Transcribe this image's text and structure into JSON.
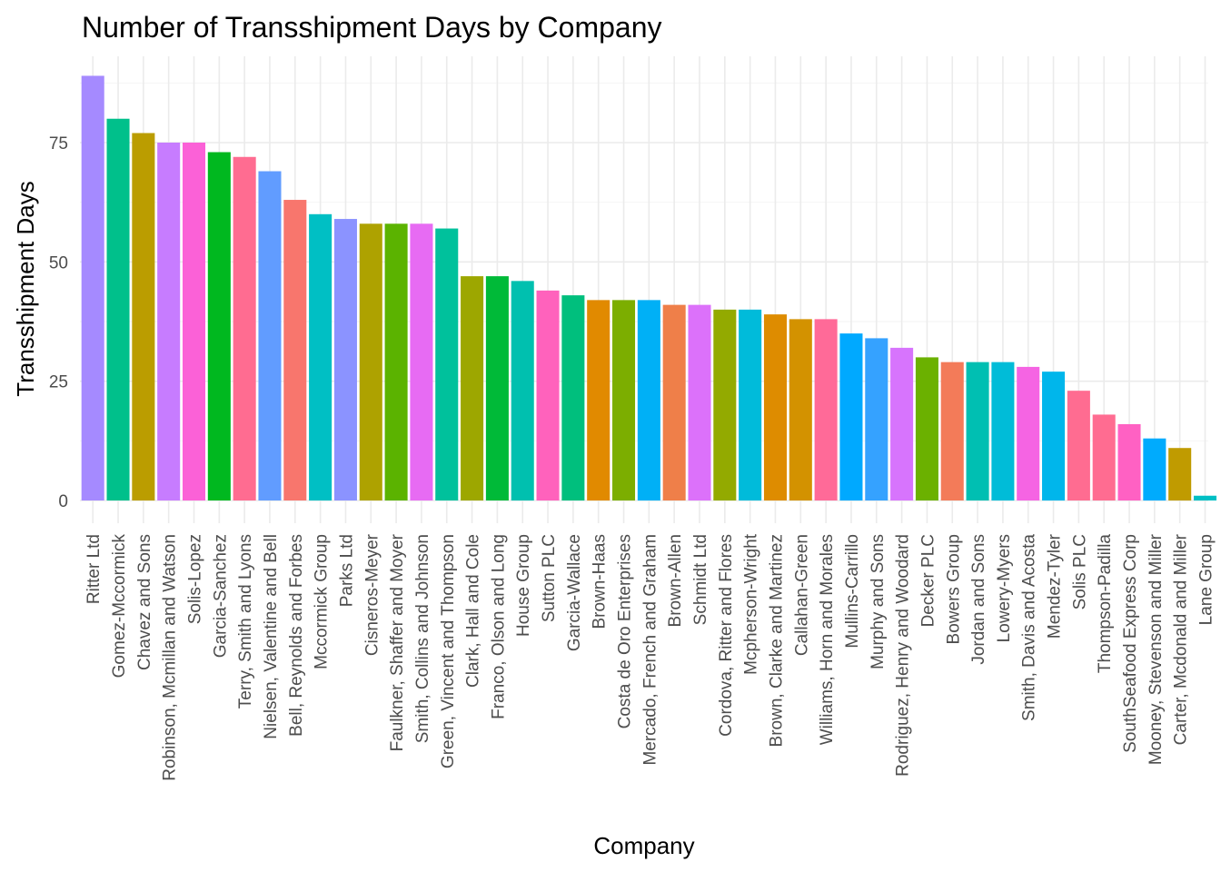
{
  "chart_data": {
    "type": "bar",
    "title": "Number of Transshipment Days by Company",
    "xlabel": "Company",
    "ylabel": "Transshipment Days",
    "ylim": [
      0,
      90
    ],
    "yticks": [
      0,
      25,
      50,
      75
    ],
    "grid": true,
    "legend": "none",
    "categories": [
      "Ritter Ltd",
      "Gomez-Mccormick",
      "Chavez and Sons",
      "Robinson, Mcmillan and Watson",
      "Solis-Lopez",
      "Garcia-Sanchez",
      "Terry, Smith and Lyons",
      "Nielsen, Valentine and Bell",
      "Bell, Reynolds and Forbes",
      "Mccormick Group",
      "Parks Ltd",
      "Cisneros-Meyer",
      "Faulkner, Shaffer and Moyer",
      "Smith, Collins and Johnson",
      "Green, Vincent and Thompson",
      "Clark, Hall and Cole",
      "Franco, Olson and Long",
      "House Group",
      "Sutton PLC",
      "Garcia-Wallace",
      "Brown-Haas",
      "Costa de Oro Enterprises",
      "Mercado, French and Graham",
      "Brown-Allen",
      "Schmidt Ltd",
      "Cordova, Ritter and Flores",
      "Mcpherson-Wright",
      "Brown, Clarke and Martinez",
      "Callahan-Green",
      "Williams, Horn and Morales",
      "Mullins-Carrillo",
      "Murphy and Sons",
      "Rodriguez, Henry and Woodard",
      "Decker PLC",
      "Bowers Group",
      "Jordan and Sons",
      "Lowery-Myers",
      "Smith, Davis and Acosta",
      "Mendez-Tyler",
      "Solis PLC",
      "Thompson-Padilla",
      "SouthSeafood Express Corp",
      "Mooney, Stevenson and Miller",
      "Carter, Mcdonald and Miller",
      "Lane Group"
    ],
    "values": [
      89,
      80,
      77,
      75,
      75,
      73,
      72,
      69,
      63,
      60,
      59,
      58,
      58,
      58,
      57,
      47,
      47,
      46,
      44,
      43,
      42,
      42,
      42,
      41,
      41,
      40,
      40,
      39,
      38,
      38,
      35,
      34,
      32,
      30,
      29,
      29,
      29,
      28,
      27,
      23,
      18,
      16,
      13,
      11,
      1
    ],
    "colors": [
      "#A58AFF",
      "#00C08B",
      "#BB9D00",
      "#C77CFF",
      "#FB61D7",
      "#00B81F",
      "#FF6C91",
      "#619CFF",
      "#F8766D",
      "#00BFC4",
      "#8B93FF",
      "#AEA200",
      "#5BB300",
      "#E76BF3",
      "#00C19C",
      "#9DA700",
      "#00BA38",
      "#00C0AF",
      "#FF62BC",
      "#00BF7D",
      "#E18A00",
      "#7CAE00",
      "#00B0F6",
      "#EF7F49",
      "#DC71FA",
      "#93AA00",
      "#00BBDA",
      "#DE8C00",
      "#D39200",
      "#FF6A98",
      "#00A9FF",
      "#35A2FF",
      "#D774FD",
      "#6BB100",
      "#F37B59",
      "#00BFB2",
      "#00BCD8",
      "#F564E3",
      "#00B6EB",
      "#FF6C91",
      "#FF6C91",
      "#FF61C3",
      "#00ABFD",
      "#C09B00",
      "#00BFC4"
    ]
  }
}
